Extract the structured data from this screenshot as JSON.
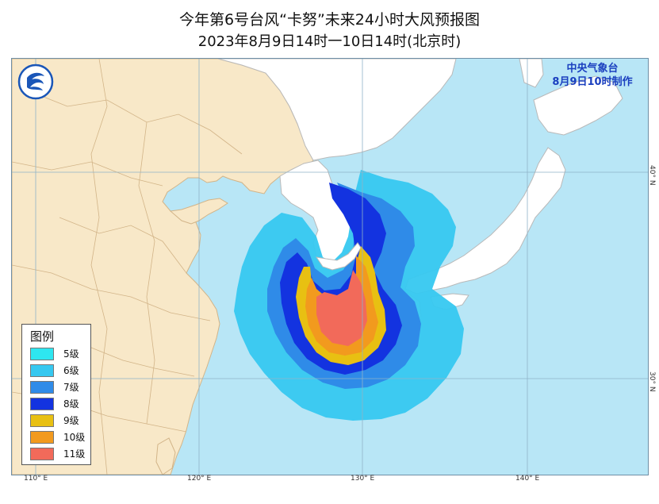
{
  "title": {
    "line1": "今年第6号台风“卡努”未来24小时大风预报图",
    "line2": "2023年8月9日14时一10日14时(北京时)"
  },
  "agency": {
    "name": "中央气象台",
    "issued": "8月9日10时制作"
  },
  "legend": {
    "title": "图例",
    "items": [
      {
        "label": "5级",
        "color": "#2ee6f0"
      },
      {
        "label": "6级",
        "color": "#36c8f0"
      },
      {
        "label": "7级",
        "color": "#2f8be8"
      },
      {
        "label": "8级",
        "color": "#1333e0"
      },
      {
        "label": "9级",
        "color": "#e8c012"
      },
      {
        "label": "10级",
        "color": "#f29a1e"
      },
      {
        "label": "11级",
        "color": "#f26a5a"
      }
    ]
  },
  "axes": {
    "longitude_labels": [
      "110° E",
      "120° E",
      "130° E",
      "140° E"
    ],
    "latitude_labels": [
      "40° N",
      "30° N"
    ]
  },
  "colors": {
    "sea": "#b8e6f6",
    "land_china": "#f8e8c8",
    "land_other": "#ffffff",
    "boundary": "#c8a070"
  },
  "icons": {
    "logo": "cma-logo-icon"
  }
}
